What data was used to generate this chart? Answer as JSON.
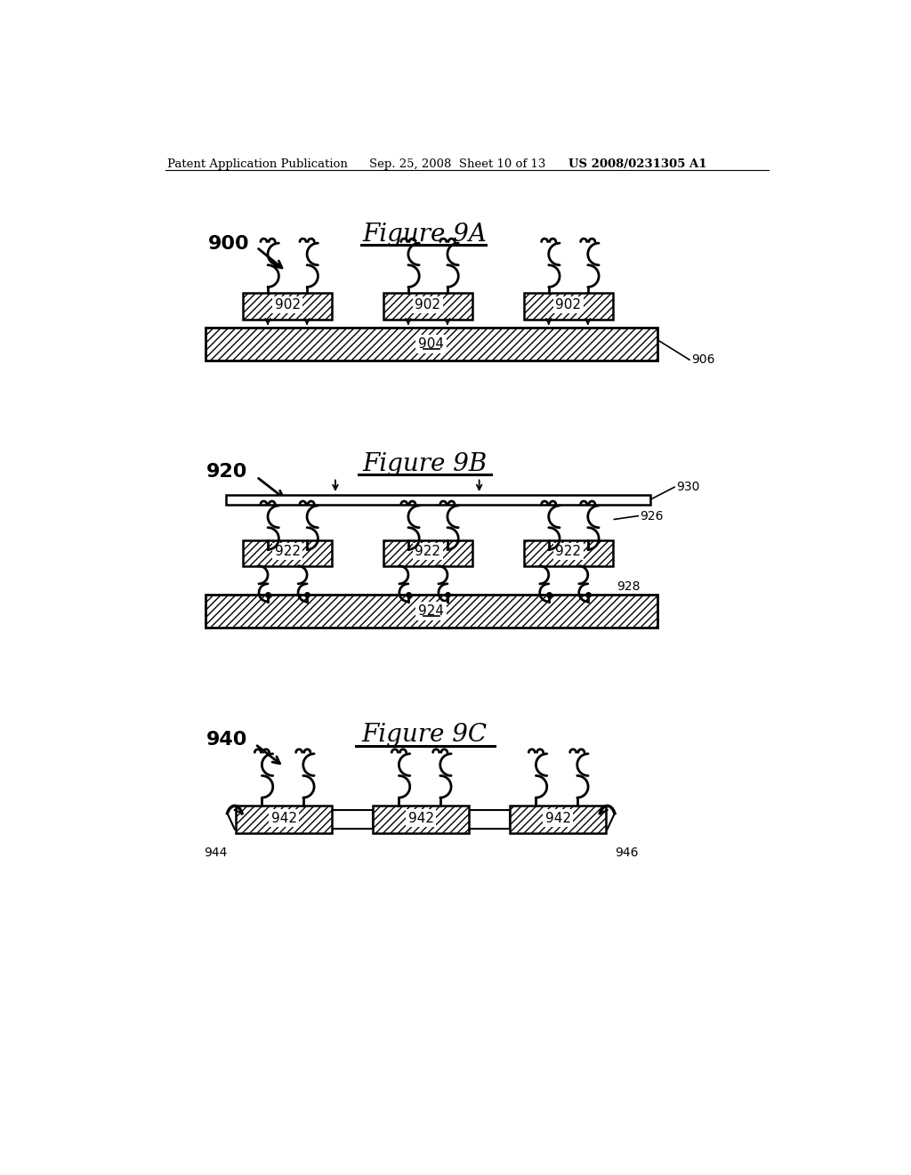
{
  "page_header_left": "Patent Application Publication",
  "page_header_center": "Sep. 25, 2008  Sheet 10 of 13",
  "page_header_right": "US 2008/0231305 A1",
  "fig9a_title": "Figure 9A",
  "fig9b_title": "Figure 9B",
  "fig9c_title": "Figure 9C",
  "fig9a_label": "900",
  "fig9b_label": "920",
  "fig9c_label": "940",
  "label_902": "902",
  "label_904": "904",
  "label_906": "906",
  "label_922": "922",
  "label_924": "924",
  "label_926": "926",
  "label_928": "928",
  "label_930": "930",
  "label_942": "942",
  "label_944": "944",
  "label_946": "946",
  "bg_color": "#ffffff"
}
